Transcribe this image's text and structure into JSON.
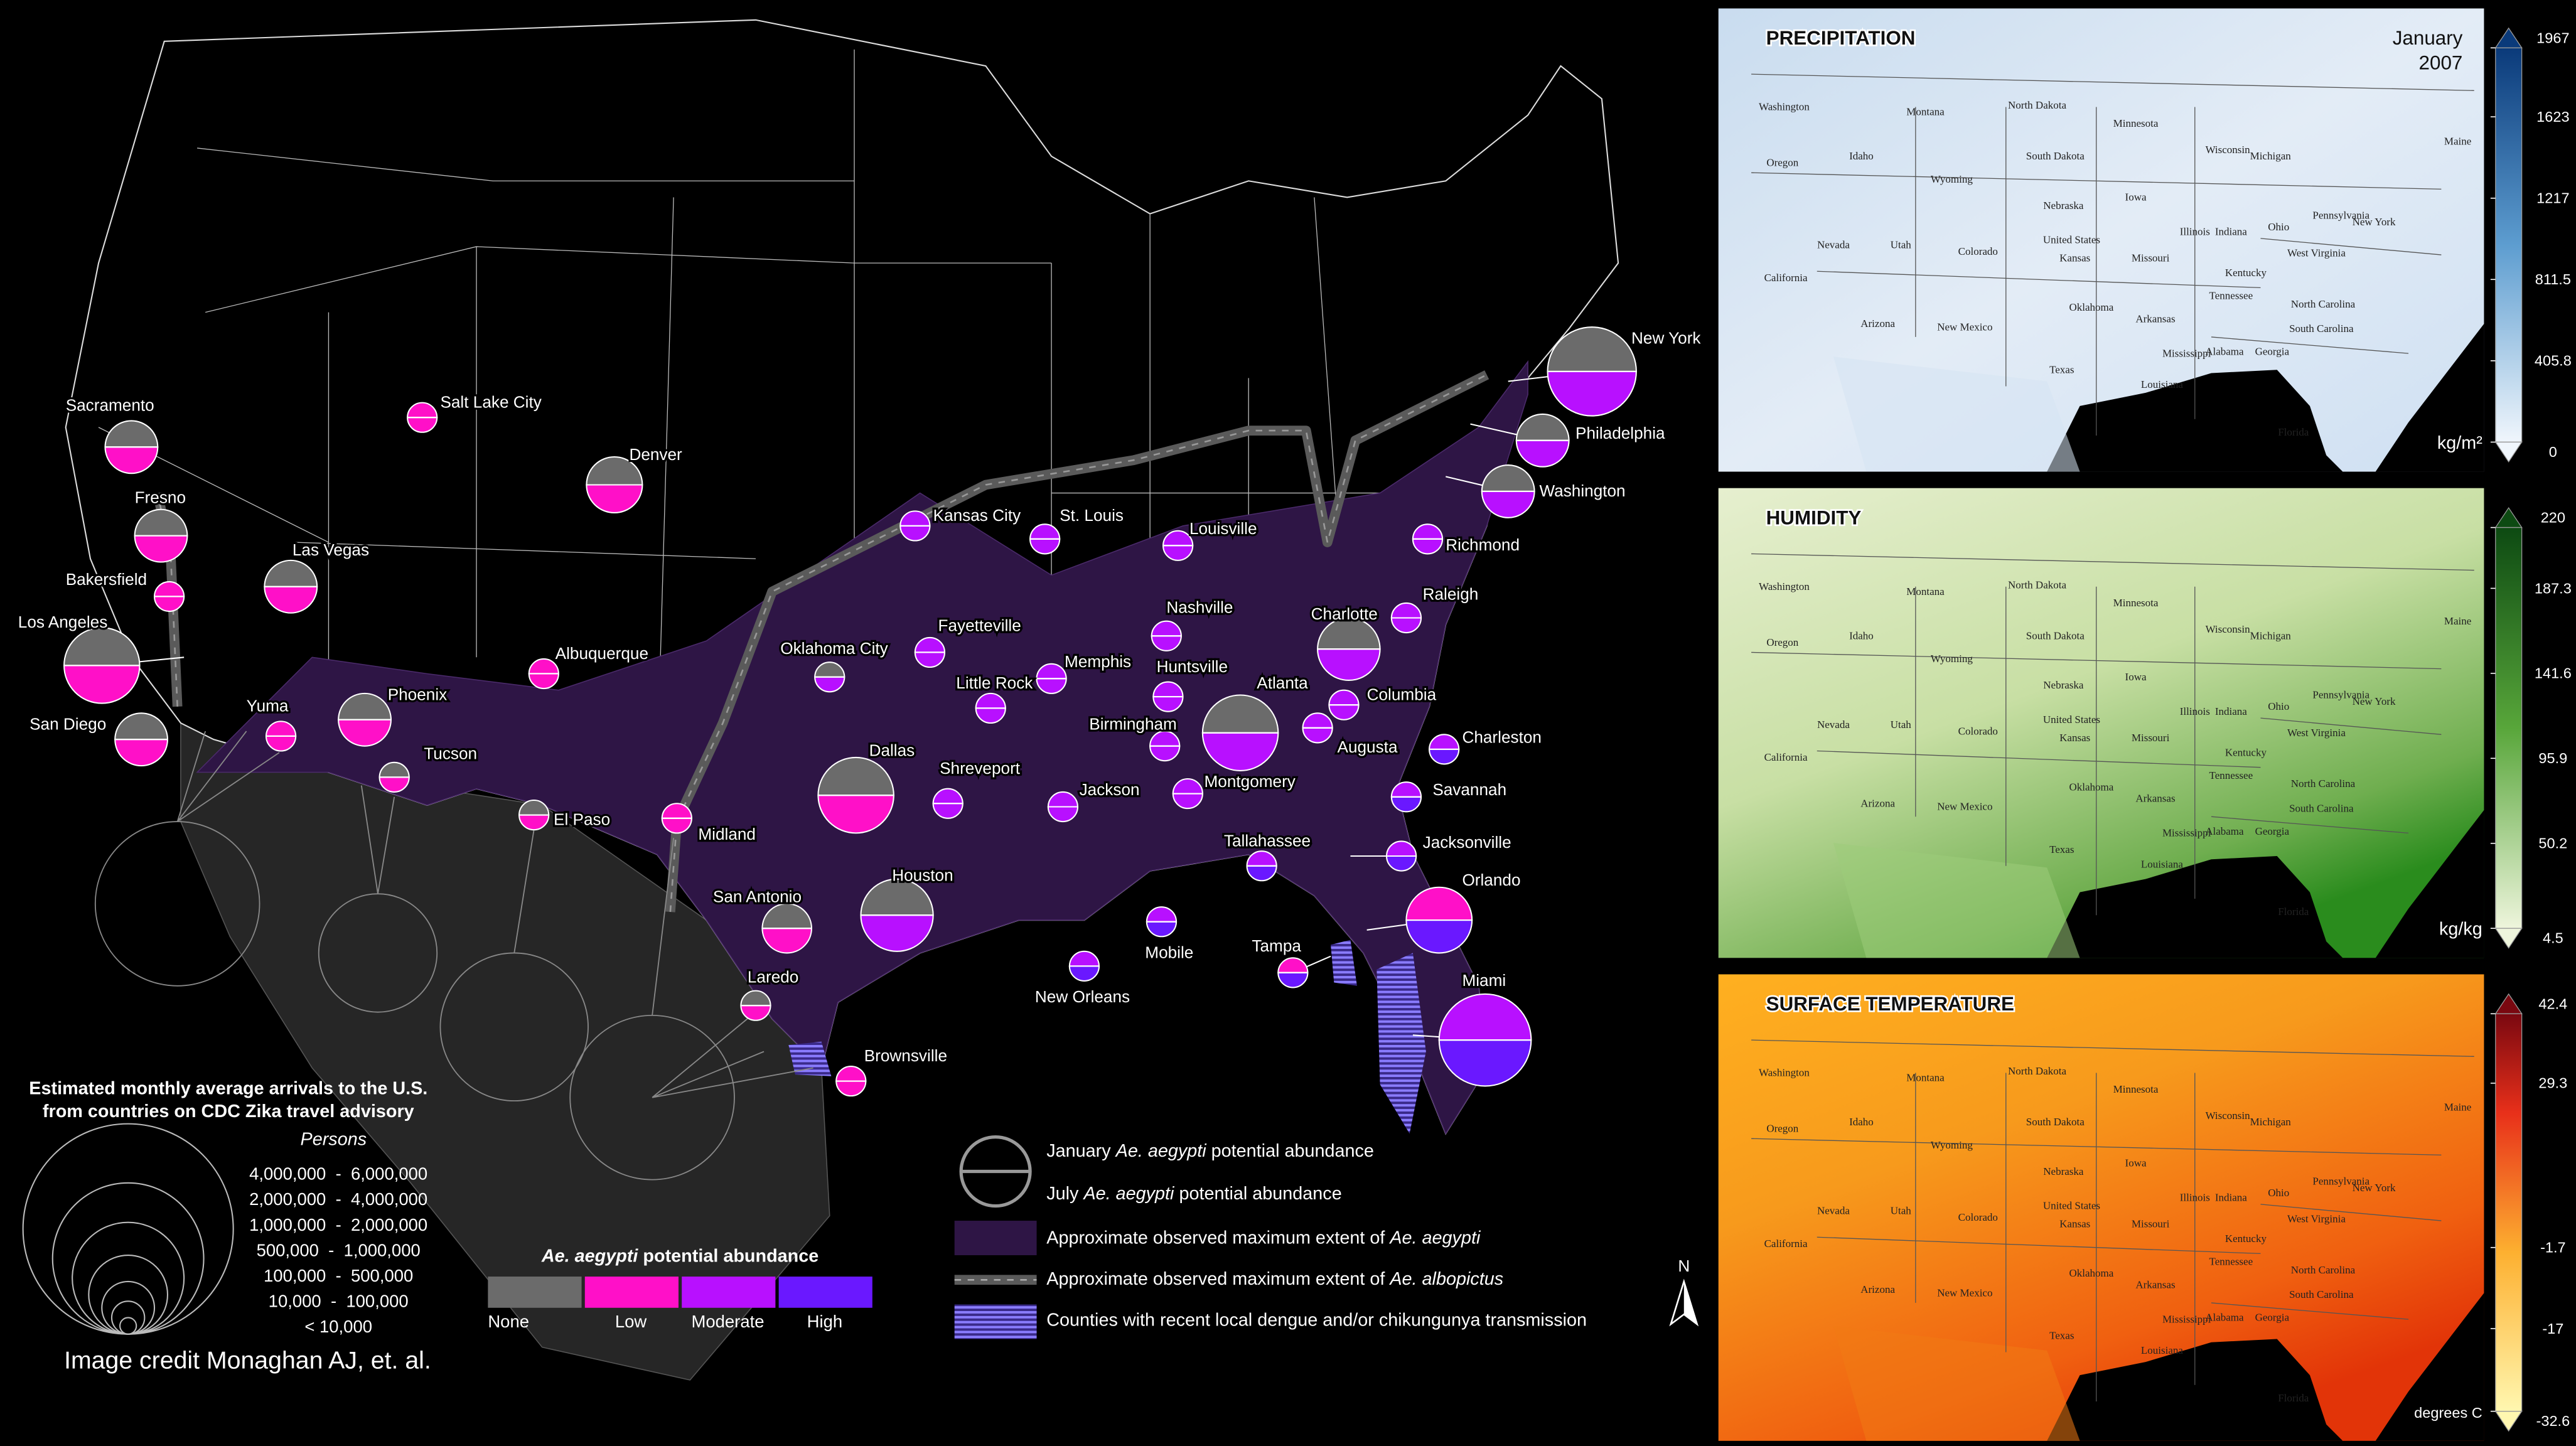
{
  "main_map": {
    "cities": [
      "New York",
      "Philadelphia",
      "Washington",
      "Richmond",
      "Raleigh",
      "Charlotte",
      "Columbia",
      "Charleston",
      "Augusta",
      "Savannah",
      "Jacksonville",
      "Orlando",
      "Tampa",
      "Miami",
      "Tallahassee",
      "Atlanta",
      "Montgomery",
      "Birmingham",
      "Huntsville",
      "Nashville",
      "Louisville",
      "Memphis",
      "Jackson",
      "Mobile",
      "New Orleans",
      "Little Rock",
      "Fayetteville",
      "St. Louis",
      "Kansas City",
      "Oklahoma City",
      "Dallas",
      "Shreveport",
      "Houston",
      "San Antonio",
      "Laredo",
      "Brownsville",
      "Midland",
      "El Paso",
      "Tucson",
      "Phoenix",
      "Albuquerque",
      "Yuma",
      "San Diego",
      "Los Angeles",
      "Bakersfield",
      "Fresno",
      "Sacramento",
      "Las Vegas",
      "Salt Lake City",
      "Denver"
    ],
    "arrivals_legend": {
      "title": [
        "Estimated monthly average arrivals to the U.S.",
        "from countries on CDC Zika travel advisory"
      ],
      "unit": "Persons",
      "classes": [
        "4,000,000  -  6,000,000",
        "2,000,000  -  4,000,000",
        "1,000,000  -  2,000,000",
        "500,000  -  1,000,000",
        "100,000  -  500,000",
        "10,000  -  100,000",
        "< 10,000"
      ]
    },
    "abundance_legend": {
      "title": [
        "Ae. aegypti",
        " potential abundance"
      ],
      "levels": [
        {
          "label": "None",
          "color": "#6b6b6b"
        },
        {
          "label": "Low",
          "color": "#ff10c8"
        },
        {
          "label": "Moderate",
          "color": "#b810ff"
        },
        {
          "label": "High",
          "color": "#6a18ff"
        }
      ]
    },
    "symbol_legend": [
      [
        "January ",
        "Ae. aegypti",
        " potential abundance"
      ],
      [
        "July ",
        "Ae. aegypti",
        " potential abundance"
      ],
      [
        "Approximate observed maximum extent of ",
        "Ae. aegypti"
      ],
      [
        "Approximate observed maximum extent of ",
        "Ae. albopictus"
      ],
      [
        "Counties with recent local dengue and/or chikungunya transmission"
      ]
    ],
    "north": "N",
    "credit": "Image credit Monaghan AJ, et. al."
  },
  "panels": [
    {
      "title": "PRECIPITATION",
      "date": [
        "January",
        "2007"
      ],
      "unit": "kg/m²",
      "ticks": [
        1967,
        1623,
        1217,
        811.5,
        405.8,
        0
      ]
    },
    {
      "title": "HUMIDITY",
      "unit": "kg/kg",
      "ticks": [
        220,
        187.3,
        141.6,
        95.9,
        50.2,
        4.5
      ]
    },
    {
      "title": "SURFACE TEMPERATURE",
      "unit": "degrees C",
      "ticks": [
        42.4,
        29.3,
        -1.7,
        -17,
        -32.6
      ]
    }
  ],
  "state_labels": [
    "Washington",
    "Montana",
    "North Dakota",
    "Minnesota",
    "Oregon",
    "Idaho",
    "Wyoming",
    "South Dakota",
    "Wisconsin",
    "Michigan",
    "Nebraska",
    "Iowa",
    "New York",
    "Pennsylvania",
    "Ohio",
    "Illinois",
    "Indiana",
    "Nevada",
    "Utah",
    "Colorado",
    "United States",
    "Kansas",
    "Missouri",
    "West Virginia",
    "Kentucky",
    "California",
    "North Carolina",
    "Tennessee",
    "Oklahoma",
    "Arkansas",
    "South Carolina",
    "Arizona",
    "New Mexico",
    "Mississippi",
    "Alabama",
    "Georgia",
    "Texas",
    "Louisiana",
    "Maine",
    "Florida"
  ]
}
